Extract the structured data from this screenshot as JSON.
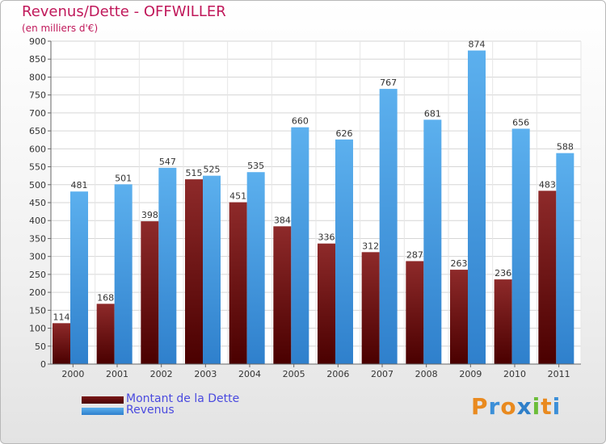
{
  "header": {
    "title": "Revenus/Dette - OFFWILLER",
    "subtitle": "(en milliers d'€)"
  },
  "legend": [
    {
      "label": "Montant de la Dette",
      "color": "#6b0c0c"
    },
    {
      "label": "Revenus",
      "color": "#4aa0e6"
    }
  ],
  "logo": {
    "text": "Proxiti",
    "letters": [
      "P",
      "r",
      "o",
      "x",
      "i",
      "t",
      "i"
    ],
    "colors": [
      "#e98a1f",
      "#3c8fd8",
      "#e98a1f",
      "#2f7fc9",
      "#6cbd3a",
      "#e98a1f",
      "#3c8fd8"
    ]
  },
  "chart_data": {
    "type": "bar",
    "categories": [
      "2000",
      "2001",
      "2002",
      "2003",
      "2004",
      "2005",
      "2006",
      "2007",
      "2008",
      "2009",
      "2010",
      "2011"
    ],
    "series": [
      {
        "name": "Montant de la Dette",
        "color": "#6b0c0c",
        "values": [
          114,
          168,
          398,
          515,
          451,
          384,
          336,
          312,
          287,
          263,
          236,
          483
        ]
      },
      {
        "name": "Revenus",
        "color": "#4aa0e6",
        "values": [
          481,
          501,
          547,
          525,
          535,
          660,
          626,
          767,
          681,
          874,
          656,
          588
        ]
      }
    ],
    "ylim": [
      0,
      900
    ],
    "yticks": [
      0,
      50,
      100,
      150,
      200,
      250,
      300,
      350,
      400,
      450,
      500,
      550,
      600,
      650,
      700,
      750,
      800,
      850,
      900
    ],
    "grid": true
  }
}
